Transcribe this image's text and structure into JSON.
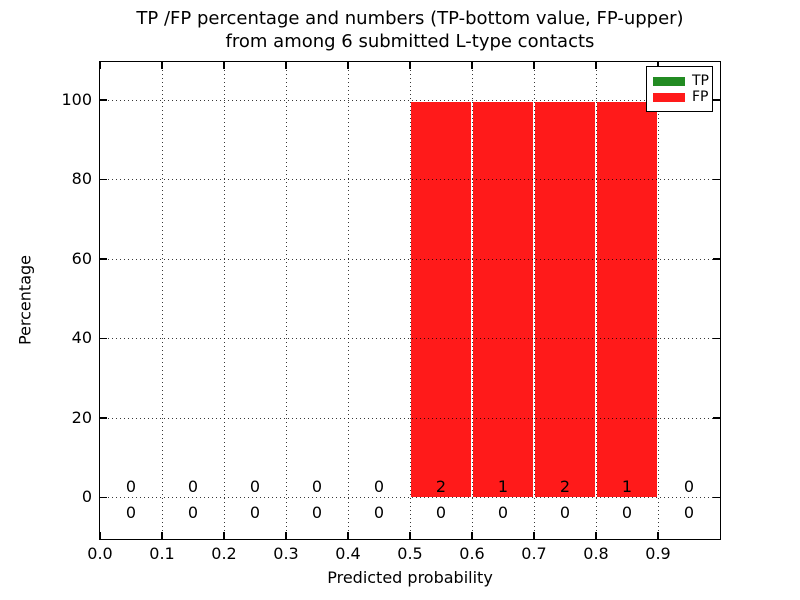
{
  "chart_data": {
    "type": "bar",
    "stacked": true,
    "title_lines": [
      "TP /FP percentage and numbers (TP-bottom value, FP-upper)",
      "from among 6 submitted L-type contacts"
    ],
    "xlabel": "Predicted probability",
    "ylabel": "Percentage",
    "x_tick_labels": [
      "0.0",
      "0.1",
      "0.2",
      "0.3",
      "0.4",
      "0.5",
      "0.6",
      "0.7",
      "0.8",
      "0.9"
    ],
    "y_tick_labels": [
      "0",
      "20",
      "40",
      "60",
      "80",
      "100"
    ],
    "xlim": [
      0.0,
      1.0
    ],
    "ylim": [
      -10.5,
      109.5
    ],
    "grid": "dotted",
    "bin_edges": [
      0.0,
      0.1,
      0.2,
      0.3,
      0.4,
      0.5,
      0.6,
      0.7,
      0.8,
      0.9,
      1.0
    ],
    "bin_centers": [
      0.05,
      0.15,
      0.25,
      0.35,
      0.45,
      0.55,
      0.65,
      0.75,
      0.85,
      0.95
    ],
    "series": [
      {
        "name": "TP",
        "color": "#228b22",
        "percent": [
          0,
          0,
          0,
          0,
          0,
          0,
          0,
          0,
          0,
          0
        ],
        "counts": [
          0,
          0,
          0,
          0,
          0,
          0,
          0,
          0,
          0,
          0
        ],
        "count_row": "below-axis"
      },
      {
        "name": "FP",
        "color": "#ff1a1a",
        "percent": [
          0,
          0,
          0,
          0,
          0,
          100,
          100,
          100,
          100,
          0
        ],
        "counts": [
          0,
          0,
          0,
          0,
          0,
          2,
          1,
          2,
          1,
          0
        ],
        "count_row": "above-axis"
      }
    ],
    "legend": {
      "position": "upper right",
      "items": [
        {
          "label": "TP",
          "color": "#228b22"
        },
        {
          "label": "FP",
          "color": "#ff1a1a"
        }
      ]
    }
  }
}
